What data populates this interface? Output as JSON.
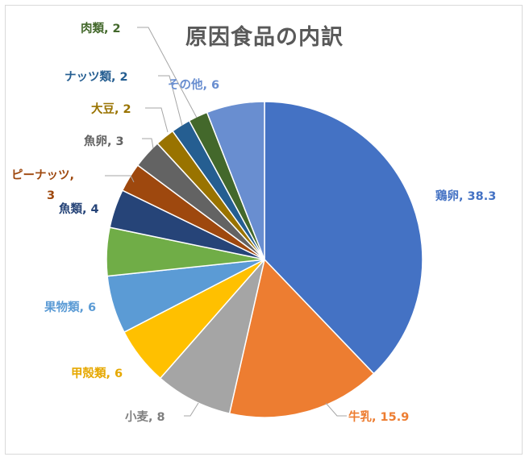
{
  "chart_data": {
    "type": "pie",
    "title": "原因食品の内訳",
    "slices": [
      {
        "label": "鶏卵",
        "value": 38.3,
        "display": "38.3",
        "color": "#4472C4"
      },
      {
        "label": "牛乳",
        "value": 15.9,
        "display": "15.9",
        "color": "#ED7D31"
      },
      {
        "label": "小麦",
        "value": 8,
        "display": "8",
        "color": "#A5A5A5"
      },
      {
        "label": "甲殻類",
        "value": 6,
        "display": "6",
        "color": "#FFC000"
      },
      {
        "label": "果物類",
        "value": 6,
        "display": "6",
        "color": "#5B9BD5"
      },
      {
        "label": "",
        "value": 5,
        "display": "",
        "color": "#70AD47"
      },
      {
        "label": "魚類",
        "value": 4,
        "display": "4",
        "color": "#264478"
      },
      {
        "label": "ピーナッツ",
        "value": 3,
        "display": "3",
        "color": "#9E480E"
      },
      {
        "label": "魚卵",
        "value": 3,
        "display": "3",
        "color": "#636363"
      },
      {
        "label": "大豆",
        "value": 2,
        "display": "2",
        "color": "#997300"
      },
      {
        "label": "ナッツ類",
        "value": 2,
        "display": "2",
        "color": "#255E91"
      },
      {
        "label": "肉類",
        "value": 2,
        "display": "2",
        "color": "#43682B"
      },
      {
        "label": "その他",
        "value": 6,
        "display": "6",
        "color": "#698ED0"
      }
    ]
  }
}
